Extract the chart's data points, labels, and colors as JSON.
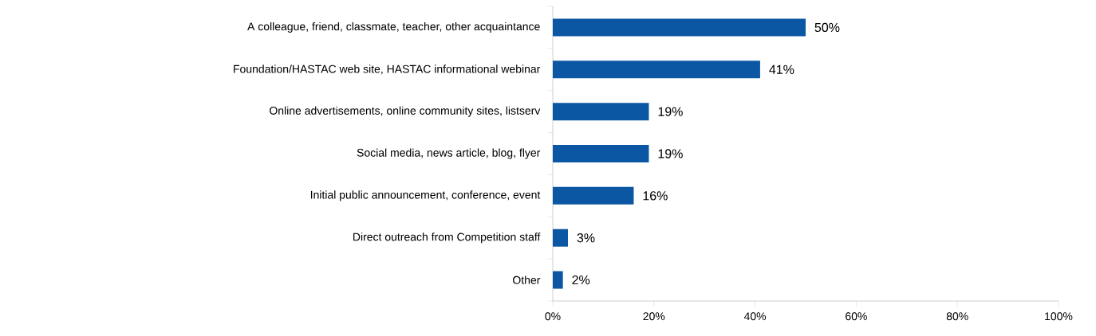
{
  "chart_data": {
    "type": "bar",
    "orientation": "horizontal",
    "categories": [
      "A colleague, friend, classmate, teacher, other acquaintance",
      "Foundation/HASTAC web site, HASTAC informational webinar",
      "Online advertisements, online community sites, listserv",
      "Social media, news article, blog, flyer",
      "Initial public announcement, conference, event",
      "Direct outreach from Competition staff",
      "Other"
    ],
    "values": [
      50,
      41,
      19,
      19,
      16,
      3,
      2
    ],
    "value_labels": [
      "50%",
      "41%",
      "19%",
      "19%",
      "16%",
      "3%",
      "2%"
    ],
    "color": "#0b57a3",
    "xlim": [
      0,
      100
    ],
    "xticks": [
      {
        "value": 0,
        "label": "0%"
      },
      {
        "value": 20,
        "label": "20%"
      },
      {
        "value": 40,
        "label": "40%"
      },
      {
        "value": 60,
        "label": "60%"
      },
      {
        "value": 80,
        "label": "80%"
      },
      {
        "value": 100,
        "label": "100%"
      }
    ]
  }
}
